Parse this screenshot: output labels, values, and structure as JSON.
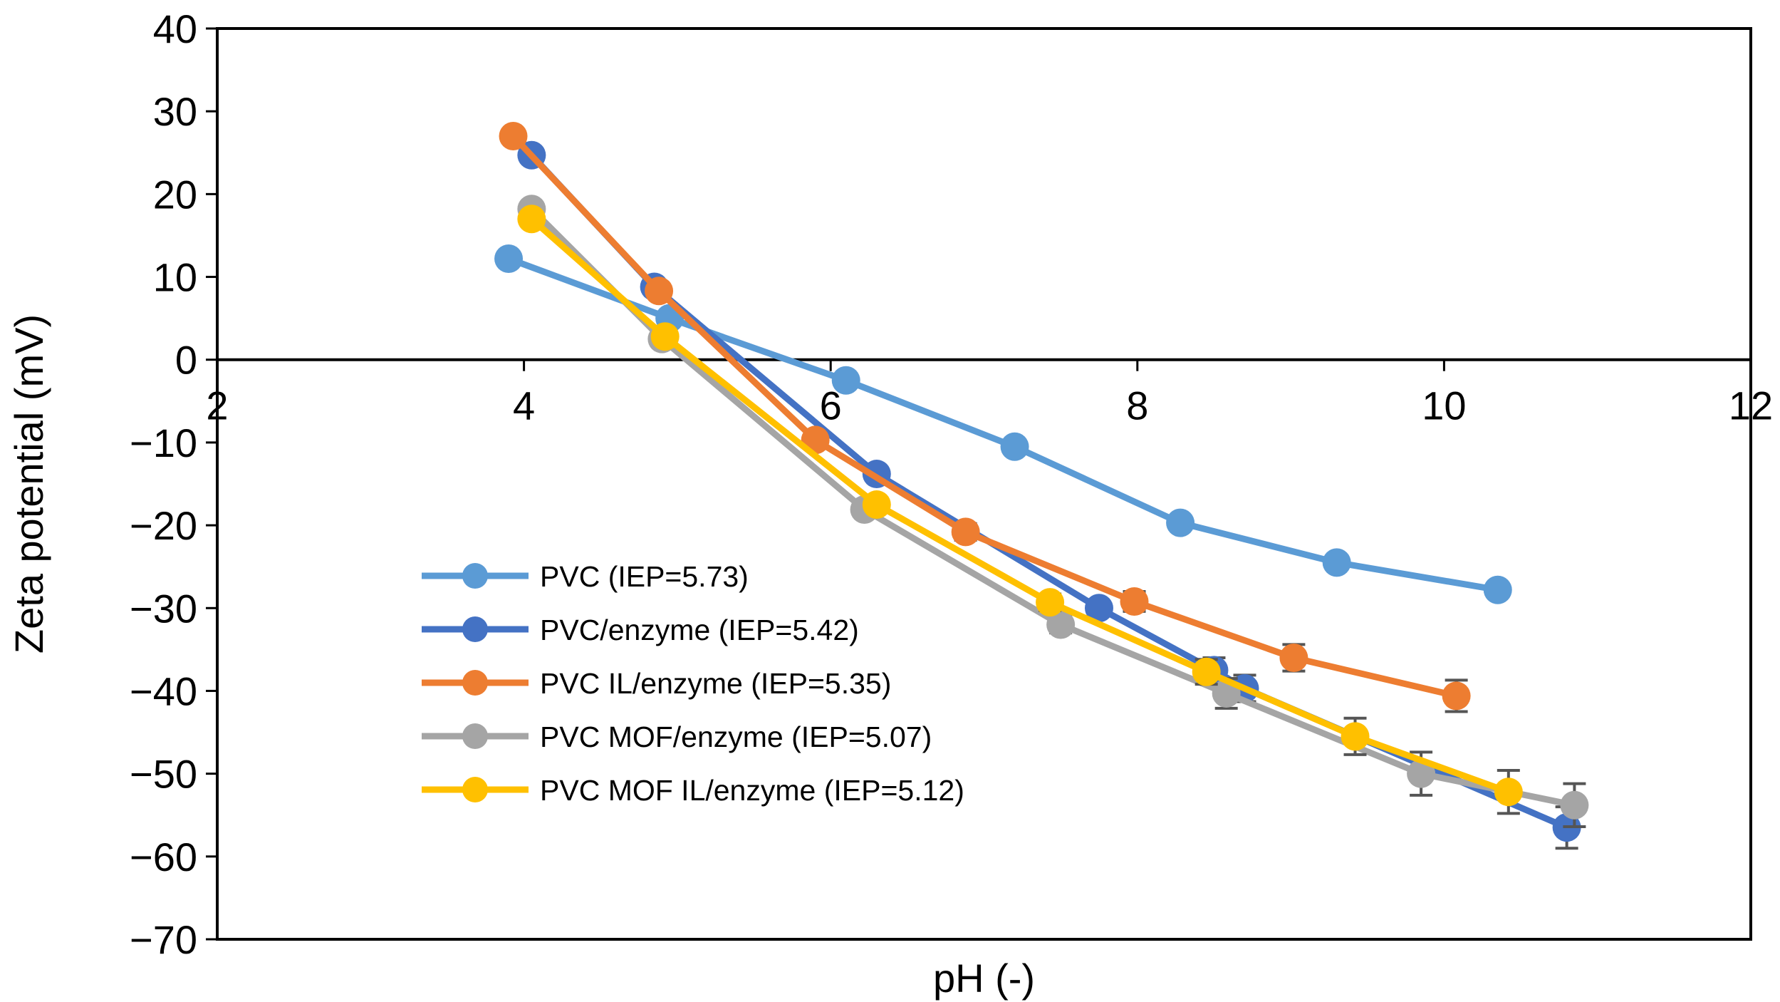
{
  "chart_data": {
    "type": "line",
    "title": "",
    "xlabel": "pH (-)",
    "ylabel": "Zeta potential (mV)",
    "xlim": [
      2,
      12
    ],
    "ylim": [
      -70,
      40
    ],
    "xticks": [
      2,
      4,
      6,
      8,
      10,
      12
    ],
    "yticks": [
      40,
      30,
      20,
      10,
      0,
      -10,
      -20,
      -30,
      -40,
      -50,
      -60,
      -70
    ],
    "grid": false,
    "legend_position": "lower-left-inside",
    "series": [
      {
        "name": "PVC (IEP=5.73)",
        "color": "#5B9BD5",
        "x": [
          3.9,
          4.95,
          6.1,
          7.2,
          8.28,
          9.3,
          10.35
        ],
        "y": [
          12.2,
          5.0,
          -2.5,
          -10.5,
          -19.7,
          -24.5,
          -27.8
        ],
        "err": [
          0.5,
          0.5,
          0.6,
          0.6,
          0.8,
          0.8,
          0.8
        ]
      },
      {
        "name": "PVC/enzyme (IEP=5.42)",
        "color": "#4472C4",
        "x": [
          4.05,
          4.85,
          6.3,
          7.75,
          8.5,
          8.7,
          10.8
        ],
        "y": [
          24.7,
          8.8,
          -13.8,
          -30.0,
          -37.5,
          -39.7,
          -56.5
        ],
        "err": [
          0.5,
          0.5,
          0.8,
          0.8,
          1.5,
          1.6,
          2.5
        ]
      },
      {
        "name": "PVC IL/enzyme (IEP=5.35)",
        "color": "#ED7D31",
        "x": [
          3.93,
          4.88,
          5.9,
          6.88,
          7.98,
          9.02,
          10.08
        ],
        "y": [
          27.0,
          8.3,
          -9.7,
          -20.8,
          -29.2,
          -36.0,
          -40.6
        ],
        "err": [
          0.5,
          0.5,
          0.8,
          1.0,
          1.2,
          1.6,
          1.9
        ]
      },
      {
        "name": "PVC MOF/enzyme (IEP=5.07)",
        "color": "#A5A5A5",
        "x": [
          4.05,
          4.9,
          6.22,
          7.5,
          8.58,
          9.85,
          10.85
        ],
        "y": [
          18.2,
          2.5,
          -18.1,
          -32.0,
          -40.3,
          -50.0,
          -53.8
        ],
        "err": [
          0.5,
          0.5,
          0.8,
          1.0,
          1.8,
          2.6,
          2.6
        ]
      },
      {
        "name": "PVC MOF IL/enzyme (IEP=5.12)",
        "color": "#FFC000",
        "x": [
          4.05,
          4.92,
          6.3,
          7.43,
          8.45,
          9.42,
          10.42
        ],
        "y": [
          17.0,
          2.8,
          -17.5,
          -29.3,
          -37.7,
          -45.5,
          -52.2
        ],
        "err": [
          0.5,
          0.5,
          0.8,
          1.0,
          1.5,
          2.2,
          2.6
        ]
      }
    ]
  }
}
